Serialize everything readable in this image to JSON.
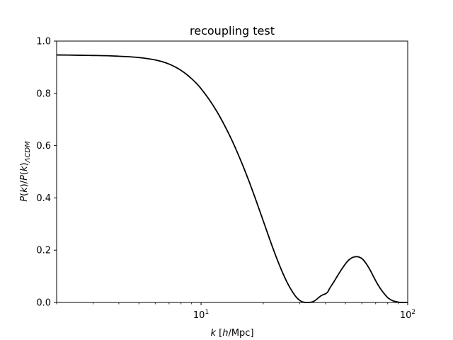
{
  "chart_data": {
    "type": "line",
    "title": "recoupling test",
    "xlabel": "k [h/Mpc]",
    "ylabel": "P(k)/P(k)ΛCDM",
    "xscale": "log",
    "xlim": [
      2.0,
      100
    ],
    "ylim": [
      0.0,
      1.0
    ],
    "grid": false,
    "x_ticks": [
      {
        "value": 10,
        "label_base": "10",
        "label_exp": "1"
      },
      {
        "value": 100,
        "label_base": "10",
        "label_exp": "2"
      }
    ],
    "y_ticks": [
      {
        "value": 0.0,
        "label": "0.0"
      },
      {
        "value": 0.2,
        "label": "0.2"
      },
      {
        "value": 0.4,
        "label": "0.4"
      },
      {
        "value": 0.6,
        "label": "0.6"
      },
      {
        "value": 0.8,
        "label": "0.8"
      },
      {
        "value": 1.0,
        "label": "1.0"
      }
    ],
    "series": [
      {
        "color": "#000000",
        "x": [
          2.0,
          2.5,
          3.0,
          3.5,
          4.0,
          4.5,
          5.0,
          5.5,
          6.0,
          6.5,
          7.0,
          7.5,
          8.0,
          8.5,
          9.0,
          9.5,
          10,
          11,
          12,
          13,
          14,
          15,
          16,
          17,
          18,
          19,
          20,
          21,
          22,
          23,
          24,
          25,
          26,
          27,
          28,
          29,
          30,
          31,
          32,
          33,
          34,
          35,
          36,
          37,
          38,
          39,
          40,
          41,
          42,
          44,
          46,
          48,
          50,
          52,
          54,
          56,
          57,
          58,
          60,
          62,
          64,
          66,
          68,
          70,
          72,
          75,
          78,
          81,
          85,
          88,
          92,
          96,
          100
        ],
        "y": [
          0.947,
          0.946,
          0.945,
          0.944,
          0.942,
          0.94,
          0.937,
          0.933,
          0.928,
          0.921,
          0.912,
          0.901,
          0.888,
          0.873,
          0.856,
          0.838,
          0.818,
          0.774,
          0.727,
          0.677,
          0.626,
          0.573,
          0.52,
          0.467,
          0.414,
          0.362,
          0.312,
          0.264,
          0.219,
          0.178,
          0.141,
          0.108,
          0.079,
          0.055,
          0.035,
          0.019,
          0.008,
          0.002,
          0.0,
          0.0,
          0.001,
          0.004,
          0.01,
          0.018,
          0.025,
          0.03,
          0.033,
          0.04,
          0.055,
          0.08,
          0.105,
          0.128,
          0.148,
          0.163,
          0.172,
          0.175,
          0.175,
          0.174,
          0.168,
          0.156,
          0.14,
          0.122,
          0.102,
          0.083,
          0.066,
          0.045,
          0.028,
          0.015,
          0.006,
          0.003,
          0.0,
          0.0,
          0.0
        ]
      }
    ]
  }
}
